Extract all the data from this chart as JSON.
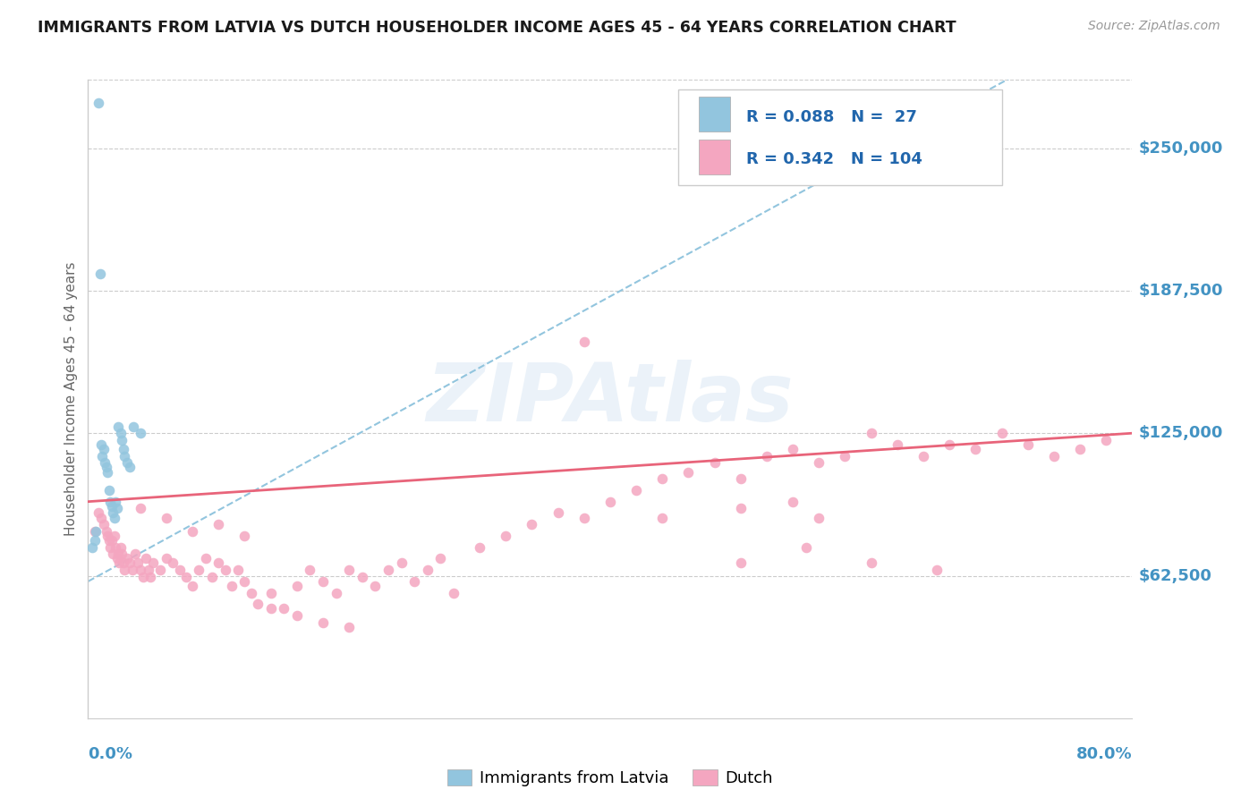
{
  "title": "IMMIGRANTS FROM LATVIA VS DUTCH HOUSEHOLDER INCOME AGES 45 - 64 YEARS CORRELATION CHART",
  "source": "Source: ZipAtlas.com",
  "ylabel": "Householder Income Ages 45 - 64 years",
  "xmin": 0.0,
  "xmax": 0.8,
  "ymin": 0,
  "ymax": 280000,
  "yticks": [
    62500,
    125000,
    187500,
    250000
  ],
  "ytick_labels": [
    "$62,500",
    "$125,000",
    "$187,500",
    "$250,000"
  ],
  "legend_r1": "R = 0.088",
  "legend_n1": "N =  27",
  "legend_r2": "R = 0.342",
  "legend_n2": "N = 104",
  "legend_label1": "Immigrants from Latvia",
  "legend_label2": "Dutch",
  "color_blue": "#92c5de",
  "color_pink": "#f4a6c0",
  "color_legend_text": "#2166ac",
  "color_yaxis_labels": "#4393c3",
  "color_trendline_blue": "#92c5de",
  "color_trendline_pink": "#e8647a",
  "blue_x": [
    0.003,
    0.005,
    0.006,
    0.008,
    0.009,
    0.01,
    0.011,
    0.012,
    0.013,
    0.014,
    0.015,
    0.016,
    0.017,
    0.018,
    0.019,
    0.02,
    0.021,
    0.022,
    0.023,
    0.025,
    0.026,
    0.027,
    0.028,
    0.03,
    0.032,
    0.035,
    0.04
  ],
  "blue_y": [
    75000,
    78000,
    82000,
    270000,
    195000,
    120000,
    115000,
    118000,
    112000,
    110000,
    108000,
    100000,
    95000,
    93000,
    90000,
    88000,
    95000,
    92000,
    128000,
    125000,
    122000,
    118000,
    115000,
    112000,
    110000,
    128000,
    125000
  ],
  "pink_x": [
    0.005,
    0.008,
    0.01,
    0.012,
    0.014,
    0.015,
    0.016,
    0.017,
    0.018,
    0.019,
    0.02,
    0.021,
    0.022,
    0.023,
    0.024,
    0.025,
    0.026,
    0.027,
    0.028,
    0.03,
    0.032,
    0.034,
    0.036,
    0.038,
    0.04,
    0.042,
    0.044,
    0.046,
    0.048,
    0.05,
    0.055,
    0.06,
    0.065,
    0.07,
    0.075,
    0.08,
    0.085,
    0.09,
    0.095,
    0.1,
    0.105,
    0.11,
    0.115,
    0.12,
    0.125,
    0.13,
    0.14,
    0.15,
    0.16,
    0.17,
    0.18,
    0.19,
    0.2,
    0.21,
    0.22,
    0.23,
    0.24,
    0.25,
    0.26,
    0.27,
    0.28,
    0.3,
    0.32,
    0.34,
    0.36,
    0.38,
    0.4,
    0.42,
    0.44,
    0.46,
    0.48,
    0.5,
    0.52,
    0.54,
    0.56,
    0.58,
    0.6,
    0.62,
    0.64,
    0.66,
    0.68,
    0.7,
    0.72,
    0.74,
    0.76,
    0.78,
    0.04,
    0.06,
    0.08,
    0.1,
    0.12,
    0.14,
    0.16,
    0.18,
    0.2,
    0.38,
    0.5,
    0.55,
    0.6,
    0.65,
    0.44,
    0.5,
    0.54,
    0.56
  ],
  "pink_y": [
    82000,
    90000,
    88000,
    85000,
    82000,
    80000,
    78000,
    75000,
    78000,
    72000,
    80000,
    75000,
    70000,
    72000,
    68000,
    75000,
    72000,
    68000,
    65000,
    70000,
    68000,
    65000,
    72000,
    68000,
    65000,
    62000,
    70000,
    65000,
    62000,
    68000,
    65000,
    70000,
    68000,
    65000,
    62000,
    58000,
    65000,
    70000,
    62000,
    68000,
    65000,
    58000,
    65000,
    60000,
    55000,
    50000,
    55000,
    48000,
    58000,
    65000,
    60000,
    55000,
    65000,
    62000,
    58000,
    65000,
    68000,
    60000,
    65000,
    70000,
    55000,
    75000,
    80000,
    85000,
    90000,
    88000,
    95000,
    100000,
    105000,
    108000,
    112000,
    105000,
    115000,
    118000,
    112000,
    115000,
    125000,
    120000,
    115000,
    120000,
    118000,
    125000,
    120000,
    115000,
    118000,
    122000,
    92000,
    88000,
    82000,
    85000,
    80000,
    48000,
    45000,
    42000,
    40000,
    165000,
    68000,
    75000,
    68000,
    65000,
    88000,
    92000,
    95000,
    88000
  ]
}
